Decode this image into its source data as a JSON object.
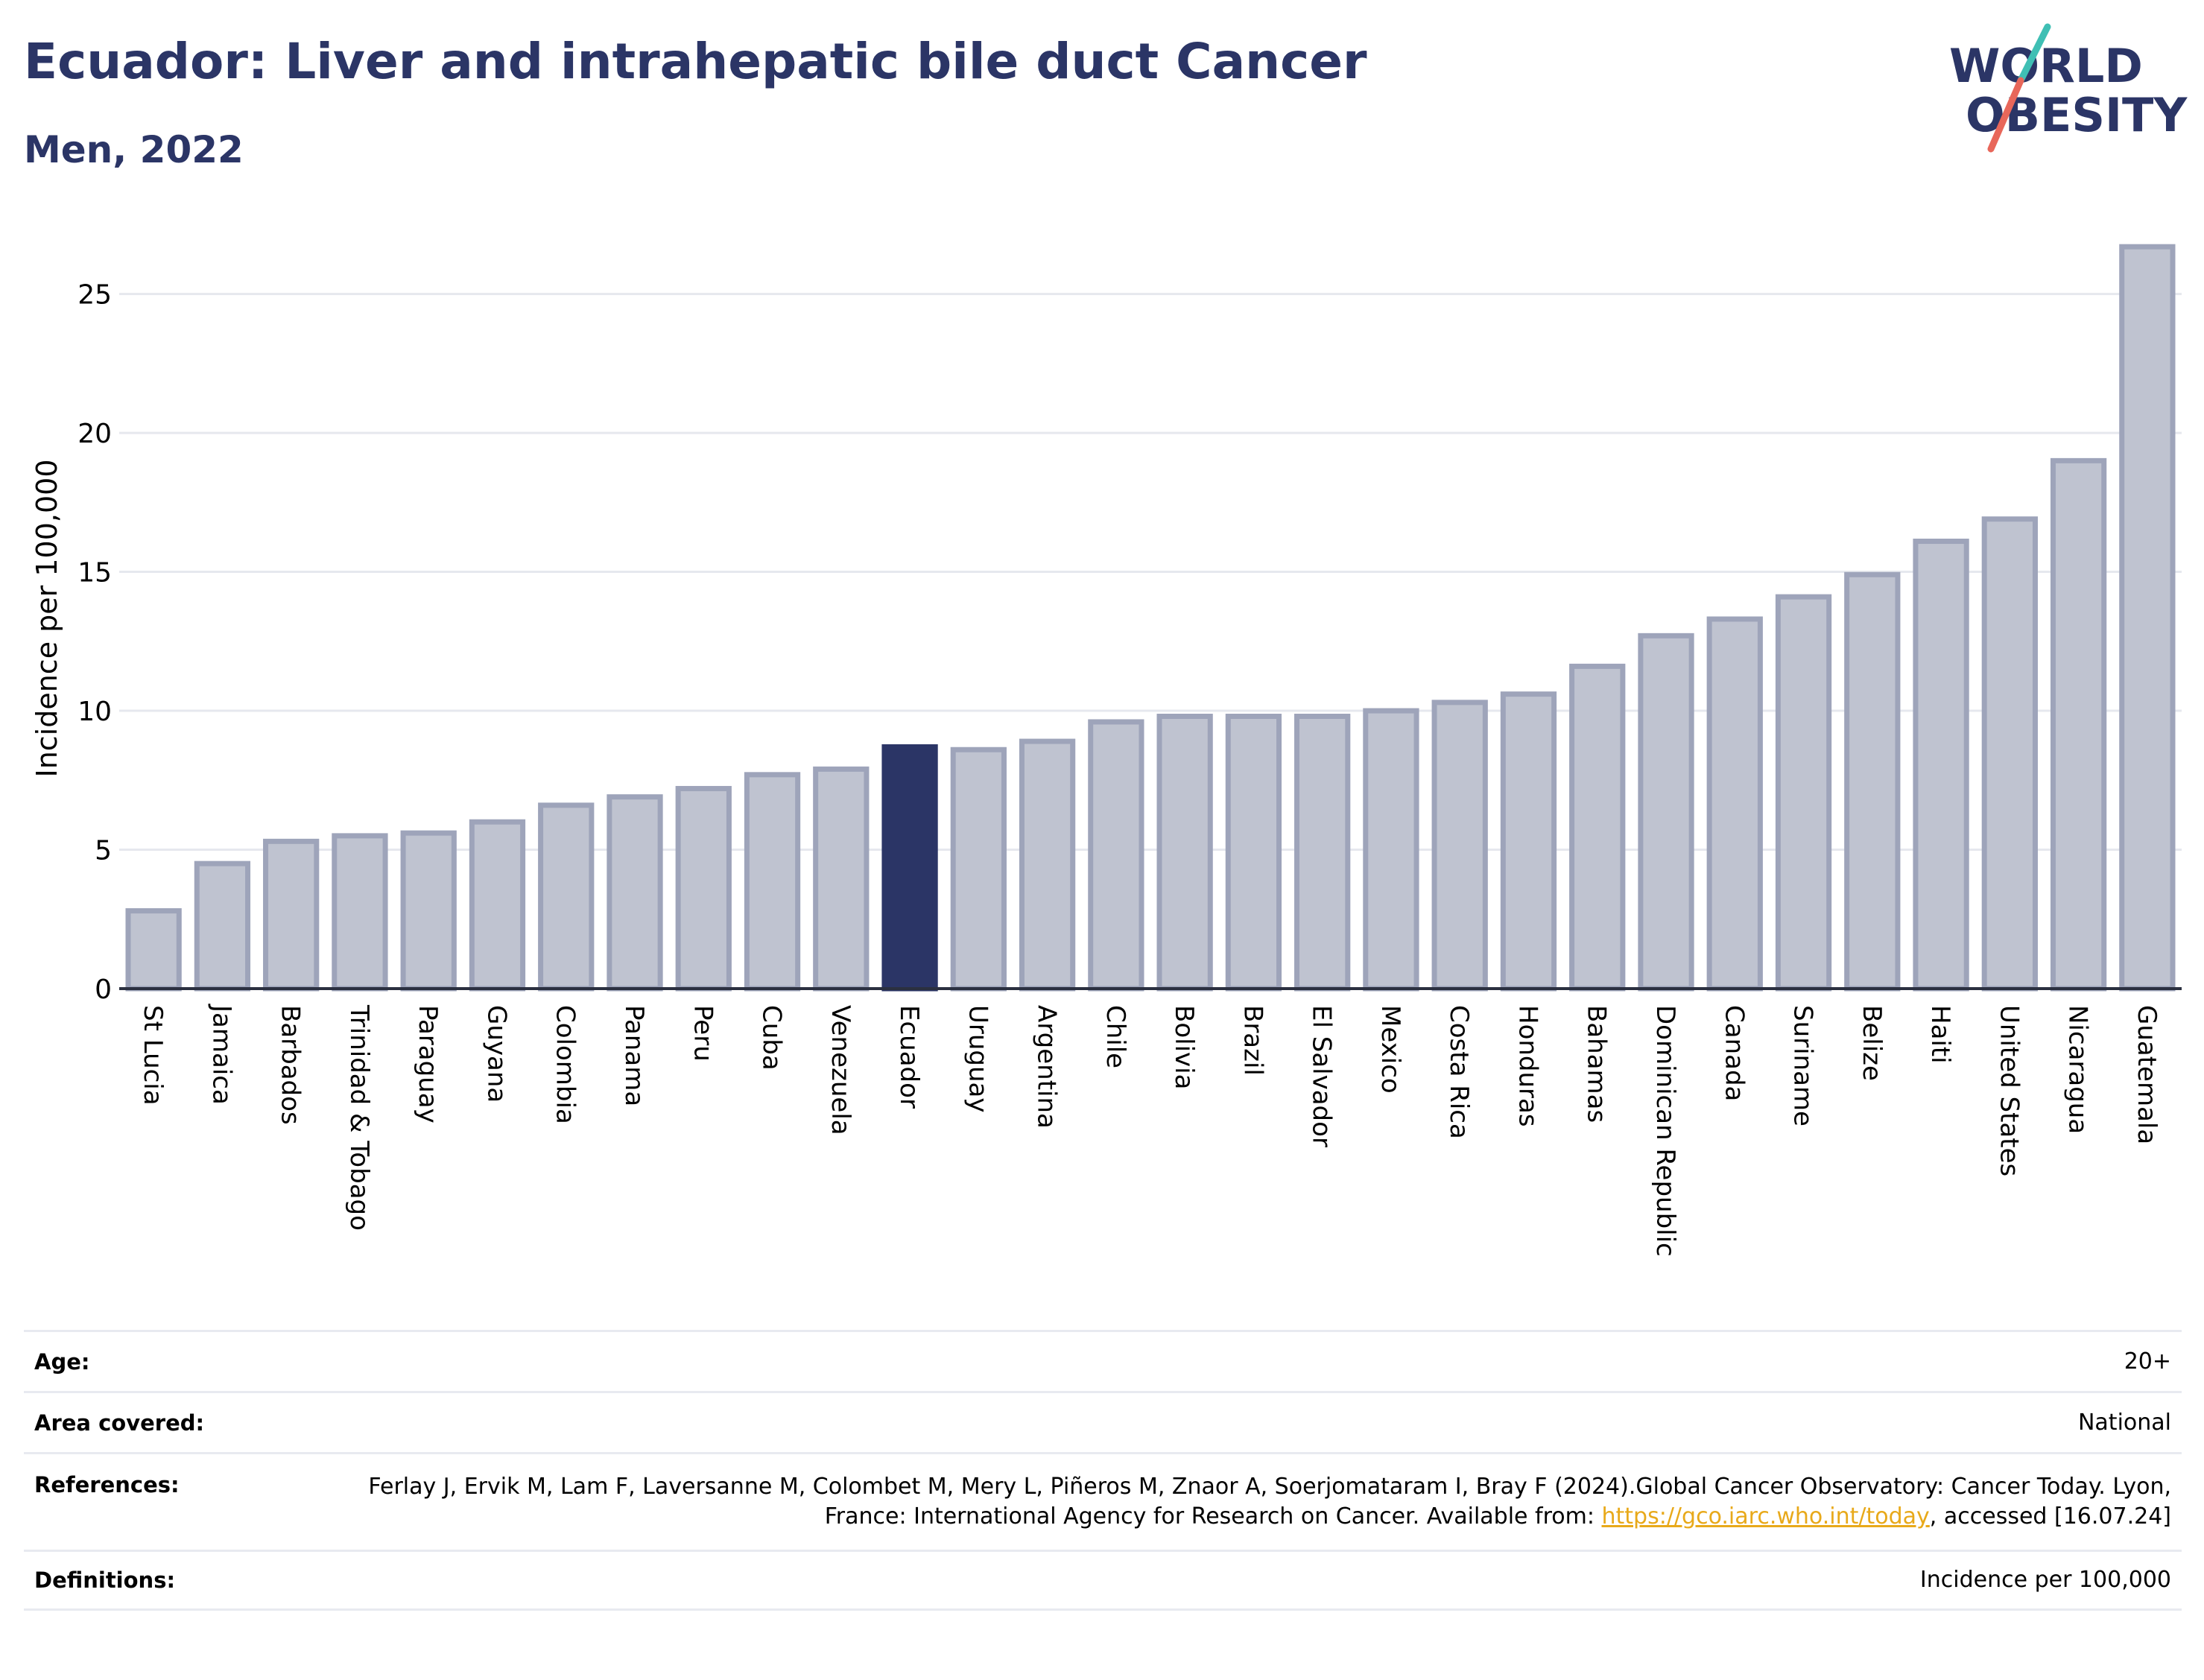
{
  "header": {
    "title": "Ecuador: Liver and intrahepatic bile duct Cancer",
    "subtitle": "Men, 2022"
  },
  "logo": {
    "line1": "WORLD",
    "line2": "OBESITY",
    "colors": {
      "text": "#2b3566",
      "slash_top": "#3fbfb4",
      "slash_bottom": "#e8675a"
    }
  },
  "chart_data": {
    "type": "bar",
    "ylabel": "Incidence per 100,000",
    "xlabel": "",
    "ylim": [
      0,
      27
    ],
    "yticks": [
      0,
      5,
      10,
      15,
      20,
      25
    ],
    "grid": true,
    "highlight": "Ecuador",
    "colors": {
      "bar": "#bfc3d0",
      "bar_border": "#9ea4ba",
      "highlight": "#2b3566"
    },
    "categories": [
      "St Lucia",
      "Jamaica",
      "Barbados",
      "Trinidad & Tobago",
      "Paraguay",
      "Guyana",
      "Colombia",
      "Panama",
      "Peru",
      "Cuba",
      "Venezuela",
      "Ecuador",
      "Uruguay",
      "Argentina",
      "Chile",
      "Bolivia",
      "Brazil",
      "El Salvador",
      "Mexico",
      "Costa Rica",
      "Honduras",
      "Bahamas",
      "Dominican Republic",
      "Canada",
      "Suriname",
      "Belize",
      "Haiti",
      "United States",
      "Nicaragua",
      "Guatemala"
    ],
    "values": [
      2.8,
      4.5,
      5.3,
      5.5,
      5.6,
      6.0,
      6.6,
      6.9,
      7.2,
      7.7,
      7.9,
      8.7,
      8.6,
      8.9,
      9.6,
      9.8,
      9.8,
      9.8,
      10.0,
      10.3,
      10.6,
      11.6,
      12.7,
      13.3,
      14.1,
      14.9,
      16.1,
      16.9,
      19.0,
      26.7
    ]
  },
  "info": {
    "age_label": "Age:",
    "age_value": "20+",
    "area_label": "Area covered:",
    "area_value": "National",
    "references_label": "References:",
    "references_text": "Ferlay J, Ervik M, Lam F, Laversanne M, Colombet M, Mery L, Piñeros M, Znaor A, Soerjomataram I, Bray F (2024).Global Cancer Observatory: Cancer Today. Lyon, France: International Agency for Research on Cancer. Available from: ",
    "references_link": "https://gco.iarc.who.int/today",
    "references_tail": ", accessed [16.07.24]",
    "definitions_label": "Definitions:",
    "definitions_value": "Incidence per 100,000"
  }
}
